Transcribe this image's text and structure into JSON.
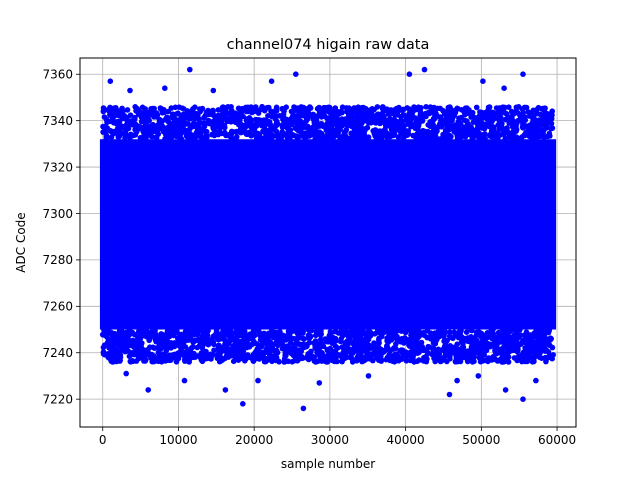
{
  "chart_data": {
    "type": "scatter",
    "title": "channel074 higain raw data",
    "xlabel": "sample number",
    "ylabel": "ADC Code",
    "xlim": [
      -3000,
      62500
    ],
    "ylim": [
      7208,
      7367
    ],
    "x_ticks": [
      0,
      10000,
      20000,
      30000,
      40000,
      50000,
      60000
    ],
    "y_ticks": [
      7220,
      7240,
      7260,
      7280,
      7300,
      7320,
      7340,
      7360
    ],
    "grid": true,
    "marker_color": "#0000ff",
    "marker": "circle",
    "series": [
      {
        "sample_count": 59500,
        "sample_x_range": [
          0,
          59500
        ],
        "typical_mean": 7290,
        "typical_std": 13,
        "dense_band": [
          7250,
          7332
        ],
        "extreme_points": [
          {
            "x": 11500,
            "y": 7362
          },
          {
            "x": 42500,
            "y": 7362
          },
          {
            "x": 55500,
            "y": 7360
          },
          {
            "x": 25500,
            "y": 7360
          },
          {
            "x": 40500,
            "y": 7360
          },
          {
            "x": 1000,
            "y": 7357
          },
          {
            "x": 22300,
            "y": 7357
          },
          {
            "x": 50200,
            "y": 7357
          },
          {
            "x": 8200,
            "y": 7354
          },
          {
            "x": 14600,
            "y": 7353
          },
          {
            "x": 53000,
            "y": 7354
          },
          {
            "x": 3600,
            "y": 7353
          },
          {
            "x": 26500,
            "y": 7216
          },
          {
            "x": 18500,
            "y": 7218
          },
          {
            "x": 55500,
            "y": 7220
          },
          {
            "x": 45800,
            "y": 7222
          },
          {
            "x": 6000,
            "y": 7224
          },
          {
            "x": 16200,
            "y": 7224
          },
          {
            "x": 53200,
            "y": 7224
          },
          {
            "x": 10800,
            "y": 7228
          },
          {
            "x": 20500,
            "y": 7228
          },
          {
            "x": 46800,
            "y": 7228
          },
          {
            "x": 57200,
            "y": 7228
          },
          {
            "x": 28600,
            "y": 7227
          },
          {
            "x": 35100,
            "y": 7230
          },
          {
            "x": 3100,
            "y": 7231
          },
          {
            "x": 49600,
            "y": 7230
          }
        ]
      }
    ]
  }
}
